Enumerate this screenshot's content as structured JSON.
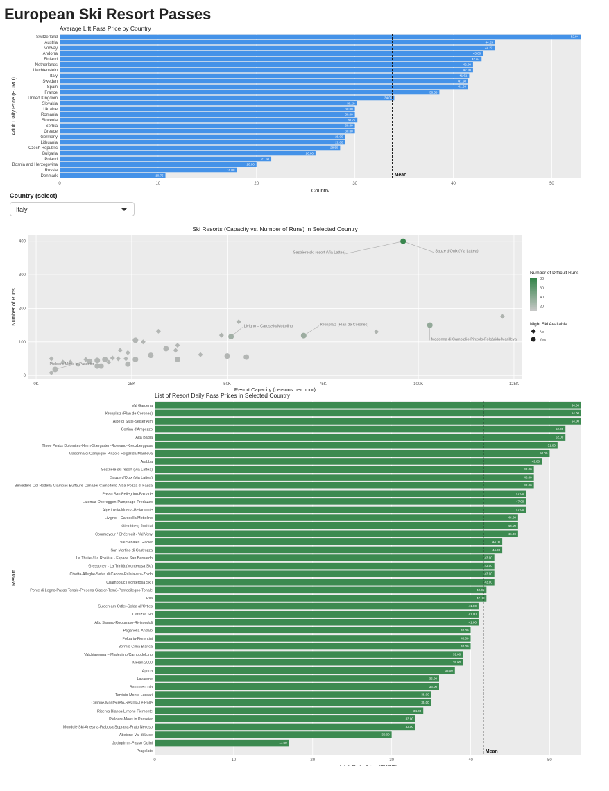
{
  "app_title": "European Ski Resort Passes",
  "country_select": {
    "label": "Country (select)",
    "value": "Italy"
  },
  "colors": {
    "blue_bar": "#4492e8",
    "green_bar": "#3c8a50",
    "panel_bg": "#ebebeb",
    "grid": "#ffffff"
  },
  "chart_data": [
    {
      "type": "bar",
      "orientation": "horizontal",
      "title": "Average Lift Pass Price by Country",
      "xlabel": "Country",
      "ylabel": "Adult Daily Price (EURO)",
      "xlim": [
        0,
        53
      ],
      "ticks": [
        0,
        10,
        20,
        30,
        40,
        50
      ],
      "mean": 33.8,
      "mean_label": "Mean",
      "categories": [
        "Switzerland",
        "Austria",
        "Norway",
        "Andorra",
        "Finland",
        "Netherlands",
        "Liechtenstein",
        "Italy",
        "Sweden",
        "Spain",
        "France",
        "United Kingdom",
        "Slovakia",
        "Ukraine",
        "Romania",
        "Slovenia",
        "Serbia",
        "Greece",
        "Germany",
        "Lithuania",
        "Czech Republic",
        "Bulgaria",
        "Poland",
        "Bosnia and Herzegovina",
        "Russia",
        "Denmark"
      ],
      "values": [
        52.94,
        44.25,
        44.22,
        43.0,
        42.87,
        42.0,
        42.0,
        41.61,
        41.5,
        41.5,
        38.58,
        34.0,
        30.2,
        30.0,
        30.0,
        30.25,
        30.0,
        30.0,
        29.0,
        29.0,
        28.5,
        26.0,
        21.5,
        20.0,
        18.0,
        10.75
      ],
      "labels": [
        "52.94",
        "44.25",
        "44.22",
        "43.00",
        "42.87",
        "42.00",
        "42.00",
        "41.61",
        "41.50",
        "41.50",
        "38.58",
        "34.00",
        "30.20",
        "30.00",
        "30.00",
        "30.25",
        "30.00",
        "30.00",
        "29.00",
        "29.00",
        "28.50",
        "26.00",
        "21.50",
        "20.00",
        "18.00",
        "10.75"
      ]
    },
    {
      "type": "scatter",
      "title": "Ski Resorts (Capacity vs. Number of Runs) in Selected Country",
      "xlabel": "Resort Capacity (persons per hour)",
      "ylabel": "Number of Runs",
      "xlim": [
        -2000,
        127000
      ],
      "ylim": [
        -10,
        418
      ],
      "xticks": [
        0,
        25000,
        50000,
        75000,
        100000,
        125000
      ],
      "xtick_labels": [
        "0K",
        "25K",
        "50K",
        "75K",
        "100K",
        "125K"
      ],
      "yticks": [
        0,
        100,
        200,
        300,
        400
      ],
      "legend": {
        "color_title": "Number of Difficult Runs",
        "color_ticks": [
          "80",
          "60",
          "40",
          "20"
        ],
        "shape_title": "Night Ski Available",
        "shape_items": [
          "No",
          "Yes"
        ]
      },
      "points": [
        {
          "x": 96000,
          "y": 400,
          "d": 80,
          "night": "Yes"
        },
        {
          "x": 103000,
          "y": 150,
          "d": 30,
          "night": "Yes"
        },
        {
          "x": 70000,
          "y": 119,
          "d": 25,
          "night": "Yes"
        },
        {
          "x": 51000,
          "y": 116,
          "d": 22,
          "night": "Yes"
        },
        {
          "x": 122000,
          "y": 176,
          "d": 15,
          "night": "No"
        },
        {
          "x": 89000,
          "y": 130,
          "d": 15,
          "night": "No"
        },
        {
          "x": 53000,
          "y": 160,
          "d": 15,
          "night": "No"
        },
        {
          "x": 48500,
          "y": 120,
          "d": 15,
          "night": "No"
        },
        {
          "x": 26000,
          "y": 105,
          "d": 12,
          "night": "Yes"
        },
        {
          "x": 28000,
          "y": 100,
          "d": 12,
          "night": "No"
        },
        {
          "x": 32000,
          "y": 132,
          "d": 12,
          "night": "No"
        },
        {
          "x": 34000,
          "y": 80,
          "d": 12,
          "night": "Yes"
        },
        {
          "x": 37000,
          "y": 90,
          "d": 12,
          "night": "No"
        },
        {
          "x": 36500,
          "y": 75,
          "d": 12,
          "night": "No"
        },
        {
          "x": 30000,
          "y": 60,
          "d": 12,
          "night": "Yes"
        },
        {
          "x": 43000,
          "y": 62,
          "d": 12,
          "night": "No"
        },
        {
          "x": 50000,
          "y": 58,
          "d": 12,
          "night": "Yes"
        },
        {
          "x": 55000,
          "y": 55,
          "d": 12,
          "night": "Yes"
        },
        {
          "x": 37000,
          "y": 48,
          "d": 12,
          "night": "Yes"
        },
        {
          "x": 22000,
          "y": 75,
          "d": 12,
          "night": "No"
        },
        {
          "x": 24000,
          "y": 68,
          "d": 12,
          "night": "No"
        },
        {
          "x": 20000,
          "y": 52,
          "d": 12,
          "night": "No"
        },
        {
          "x": 21500,
          "y": 50,
          "d": 12,
          "night": "No"
        },
        {
          "x": 23500,
          "y": 50,
          "d": 12,
          "night": "No"
        },
        {
          "x": 26000,
          "y": 48,
          "d": 12,
          "night": "Yes"
        },
        {
          "x": 24000,
          "y": 34,
          "d": 12,
          "night": "Yes"
        },
        {
          "x": 18000,
          "y": 48,
          "d": 12,
          "night": "Yes"
        },
        {
          "x": 16000,
          "y": 45,
          "d": 12,
          "night": "Yes"
        },
        {
          "x": 14000,
          "y": 42,
          "d": 12,
          "night": "Yes"
        },
        {
          "x": 19000,
          "y": 40,
          "d": 12,
          "night": "No"
        },
        {
          "x": 13000,
          "y": 48,
          "d": 12,
          "night": "No"
        },
        {
          "x": 11000,
          "y": 32,
          "d": 12,
          "night": "No"
        },
        {
          "x": 9000,
          "y": 40,
          "d": 12,
          "night": "No"
        },
        {
          "x": 7000,
          "y": 40,
          "d": 12,
          "night": "No"
        },
        {
          "x": 16000,
          "y": 28,
          "d": 12,
          "night": "Yes"
        },
        {
          "x": 17000,
          "y": 28,
          "d": 12,
          "night": "Yes"
        },
        {
          "x": 4000,
          "y": 50,
          "d": 12,
          "night": "No"
        },
        {
          "x": 5000,
          "y": 18,
          "d": 12,
          "night": "Yes"
        },
        {
          "x": 4000,
          "y": 8,
          "d": 12,
          "night": "No"
        }
      ],
      "annotations": [
        {
          "label": "Sestriere ski resort (Via Lattea)",
          "x": 96000,
          "y": 400,
          "tx": 81000,
          "ty": 363
        },
        {
          "label": "Sauze d'Oulx (Via Lattea)",
          "x": 96000,
          "y": 400,
          "tx": 104000,
          "ty": 367
        },
        {
          "label": "Livigno – Carosello/Mottolino",
          "x": 51000,
          "y": 116,
          "tx": 54000,
          "ty": 144
        },
        {
          "label": "Kronplatz (Plan de Corones)",
          "x": 70000,
          "y": 119,
          "tx": 74000,
          "ty": 148
        },
        {
          "label": "Madonna di Campiglio-Pinzolo-Folgàrida-Marilleva",
          "x": 103000,
          "y": 150,
          "tx": 103000,
          "ty": 105
        },
        {
          "label": "Pfelders-Moos in Passeier",
          "x": 5000,
          "y": 18,
          "tx": 9000,
          "ty": 31
        }
      ]
    },
    {
      "type": "bar",
      "orientation": "horizontal",
      "title": "List of Resort Daily Pass Prices in Selected Country",
      "xlabel": "Adult Daily Price (EURO)",
      "ylabel": "Resort",
      "xlim": [
        0,
        54
      ],
      "ticks": [
        0,
        10,
        20,
        30,
        40,
        50
      ],
      "mean": 41.6,
      "mean_label": "Mean",
      "categories": [
        "Val Gardena",
        "Kronplatz (Plan de Corones)",
        "Alpe di Siusi-Seiser Alm",
        "Cortina d'Ampezzo",
        "Alta Badia",
        "Three Peaks Dolomites-Helm-Stiergarten-Rotwand-Kreuzbergpass",
        "Madonna di Campiglio-Pinzolo-Folgàrida-Marilleva",
        "Arabba",
        "Sestriere ski resort (Via Lattea)",
        "Sauze d'Oulx (Via Lattea)",
        "Belvedere-Col Rodella-Ciampac-Buffaure-Canazei-Campitello-Alba-Pozza di Fassa",
        "Passo San Pellegrino-Falcade",
        "Latemar-Obereggen-Pampeago-Predazzo",
        "Alpe Lusia-Moena-Bellamonte",
        "Livigno – Carosello/Mottolino",
        "Gitschberg Jochtal",
        "Courmayeur / Chécrouit - Val Veny",
        "Val Senales Glacier",
        "San Martino di Castrozza",
        "La Thuile / La Rosière - Espace San Bernardo",
        "Gressoney - La Trinità (Monterosa Ski)",
        "Civetta-Alleghe-Selva di Cadore-Palafavera-Zoldo",
        "Champoluc (Monterosa Ski)",
        "Ponte di Legno-Passo Tonale-Presena Glacier-Temù-Pontedilegno-Tonale",
        "Pila",
        "Sulden am Ortler-Solda all'Ortles",
        "Carezza Ski",
        "Alto Sangro-Roccaraso-Rivisondoli",
        "Paganella-Andalo",
        "Folgaria-Fiorentini",
        "Bormio-Cima Bianca",
        "Valchiavenna – Madesimo/Campodolcino",
        "Meran 2000",
        "Aprica",
        "Lavarone",
        "Bardonecchia",
        "Tarvisio-Monte Lussari",
        "Cimone-Montecreto-Sestola-Le Polle",
        "Riserva Bianca-Limone Piemonte",
        "Pfelders-Moos in Passeier",
        "Mondolè Ski-Artesina-Frabosa Soprana-Prato Nevoso",
        "Abetone-Val di Luce",
        "Jochgrimm-Passo Oclini",
        "Pragelato"
      ],
      "values": [
        54,
        54,
        54,
        52,
        52,
        51,
        50,
        49,
        48,
        48,
        48,
        47,
        47,
        47,
        46,
        46,
        46,
        44,
        44,
        43,
        43,
        43,
        43,
        42,
        42,
        41,
        41,
        41,
        40,
        40,
        40,
        39,
        39,
        38,
        36,
        36,
        35,
        35,
        34,
        33,
        33,
        30,
        17,
        0
      ],
      "labels": [
        "54.00",
        "54.00",
        "54.00",
        "52.00",
        "52.00",
        "51.00",
        "50.00",
        "49.00",
        "48.00",
        "48.00",
        "48.00",
        "47.00",
        "47.00",
        "47.00",
        "46.00",
        "46.00",
        "46.00",
        "44.00",
        "44.00",
        "43.00",
        "43.00",
        "43.00",
        "43.00",
        "42.00",
        "42.00",
        "41.00",
        "41.00",
        "41.00",
        "40.00",
        "40.00",
        "40.00",
        "39.00",
        "39.00",
        "38.00",
        "36.00",
        "36.00",
        "35.00",
        "35.00",
        "34.00",
        "33.00",
        "33.00",
        "30.00",
        "17.00",
        ""
      ]
    }
  ]
}
